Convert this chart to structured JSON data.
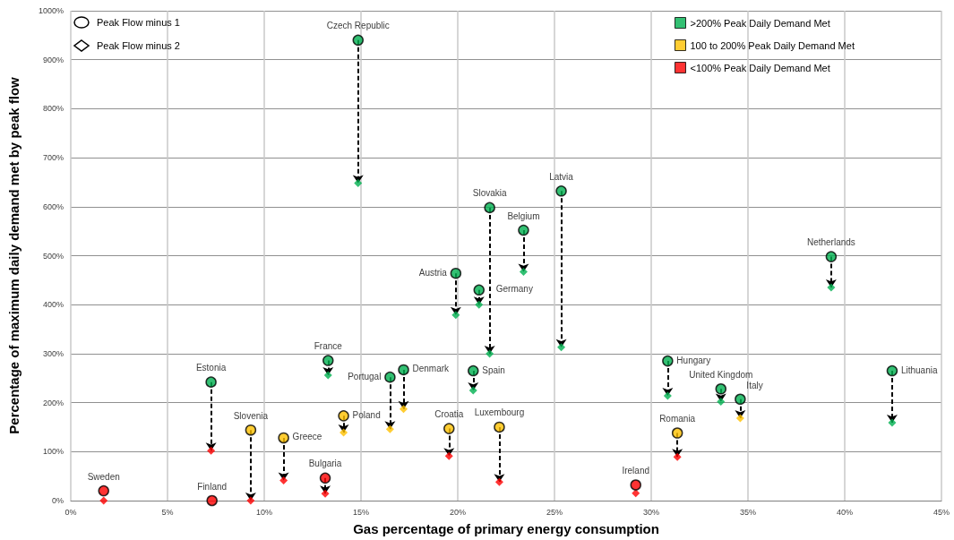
{
  "chart_data": {
    "type": "scatter",
    "xlabel": "Gas percentage of primary energy consumption",
    "ylabel": "Percentage of maximum daily demand met by peak flow",
    "xlim": [
      0,
      45
    ],
    "ylim": [
      0,
      1000
    ],
    "xticks": [
      {
        "value": 0,
        "label": "0%"
      },
      {
        "value": 5,
        "label": "5%"
      },
      {
        "value": 10,
        "label": "10%"
      },
      {
        "value": 15,
        "label": "15%"
      },
      {
        "value": 20,
        "label": "20%"
      },
      {
        "value": 25,
        "label": "25%"
      },
      {
        "value": 30,
        "label": "30%"
      },
      {
        "value": 35,
        "label": "35%"
      },
      {
        "value": 40,
        "label": "40%"
      },
      {
        "value": 45,
        "label": "45%"
      }
    ],
    "yticks": [
      {
        "value": 0,
        "label": "0%"
      },
      {
        "value": 100,
        "label": "100%"
      },
      {
        "value": 200,
        "label": "200%"
      },
      {
        "value": 300,
        "label": "300%"
      },
      {
        "value": 400,
        "label": "400%"
      },
      {
        "value": 500,
        "label": "500%"
      },
      {
        "value": 600,
        "label": "600%"
      },
      {
        "value": 700,
        "label": "700%"
      },
      {
        "value": 800,
        "label": "800%"
      },
      {
        "value": 900,
        "label": "900%"
      },
      {
        "value": 1000,
        "label": "1000%"
      }
    ],
    "grid": true,
    "legend": "top right",
    "x": [
      1.7,
      7.25,
      7.3,
      9.3,
      11.0,
      13.15,
      13.3,
      14.1,
      14.85,
      16.5,
      17.2,
      19.55,
      19.9,
      20.8,
      21.1,
      21.65,
      22.15,
      23.4,
      25.35,
      29.2,
      30.85,
      31.35,
      33.6,
      34.6,
      39.3,
      42.45
    ],
    "series": [
      {
        "name": ">200% Peak Daily Demand Met",
        "color": "#00b050",
        "marker": "circle",
        "values": [
          null,
          242,
          null,
          null,
          null,
          null,
          286,
          null,
          940,
          252,
          267,
          null,
          464,
          265,
          430,
          598,
          null,
          552,
          632,
          null,
          285,
          null,
          228,
          207,
          498,
          265
        ]
      },
      {
        "name": "100 to 200% Peak Daily Demand Met",
        "color": "#ffc000",
        "marker": "circle",
        "values": [
          null,
          null,
          null,
          144,
          128,
          null,
          null,
          173,
          null,
          null,
          null,
          147,
          null,
          null,
          null,
          null,
          150,
          null,
          null,
          null,
          null,
          138,
          null,
          null,
          null,
          null
        ]
      },
      {
        "name": "<100% Peak Daily Demand Met",
        "color": "#ff0000",
        "marker": "circle",
        "values": [
          20,
          null,
          0,
          null,
          null,
          46,
          null,
          null,
          null,
          null,
          null,
          null,
          null,
          null,
          null,
          null,
          null,
          null,
          null,
          32,
          null,
          null,
          null,
          null,
          null,
          null
        ]
      },
      {
        "color": "#00b050",
        "marker": "diamond",
        "values": [
          null,
          null,
          null,
          null,
          null,
          null,
          256,
          null,
          648,
          null,
          null,
          null,
          379,
          225,
          400,
          300,
          null,
          467,
          313,
          null,
          214,
          null,
          202,
          null,
          435,
          159
        ]
      },
      {
        "color": "#ffc000",
        "marker": "diamond",
        "values": [
          null,
          null,
          null,
          null,
          null,
          null,
          null,
          139,
          null,
          146,
          187,
          null,
          null,
          null,
          null,
          null,
          null,
          null,
          null,
          null,
          null,
          null,
          null,
          168,
          null,
          null
        ]
      },
      {
        "color": "#ff0000",
        "marker": "diamond",
        "values": [
          0,
          102,
          null,
          0,
          41,
          14,
          null,
          null,
          null,
          null,
          null,
          91,
          null,
          null,
          null,
          null,
          38,
          null,
          null,
          15,
          null,
          89,
          null,
          null,
          null,
          null
        ]
      }
    ],
    "annotations": [
      "Peak Flow minus 1",
      "Peak Flow minus 2",
      {
        "text": "Sweden",
        "x": 1.7,
        "y": 20
      },
      {
        "text": "Estonia",
        "x": 7.25,
        "y": 242
      },
      {
        "text": "Finland",
        "x": 7.3,
        "y": 0
      },
      {
        "text": "Slovenia",
        "x": 9.3,
        "y": 144
      },
      {
        "text": "Greece",
        "x": 11.0,
        "y": 128
      },
      {
        "text": "Bulgaria",
        "x": 13.15,
        "y": 46
      },
      {
        "text": "France",
        "x": 13.3,
        "y": 286
      },
      {
        "text": "Poland",
        "x": 14.1,
        "y": 173
      },
      {
        "text": "Czech Republic",
        "x": 14.85,
        "y": 940
      },
      {
        "text": "Portugal",
        "x": 16.5,
        "y": 252
      },
      {
        "text": "Denmark",
        "x": 17.2,
        "y": 267
      },
      {
        "text": "Croatia",
        "x": 19.55,
        "y": 147
      },
      {
        "text": "Austria",
        "x": 19.9,
        "y": 464
      },
      {
        "text": "Spain",
        "x": 20.8,
        "y": 265
      },
      {
        "text": "Germany",
        "x": 21.1,
        "y": 430
      },
      {
        "text": "Slovakia",
        "x": 21.65,
        "y": 598
      },
      {
        "text": "Luxembourg",
        "x": 22.15,
        "y": 150
      },
      {
        "text": "Belgium",
        "x": 23.4,
        "y": 552
      },
      {
        "text": "Latvia",
        "x": 25.35,
        "y": 632
      },
      {
        "text": "Ireland",
        "x": 29.2,
        "y": 32
      },
      {
        "text": "Hungary",
        "x": 30.85,
        "y": 285
      },
      {
        "text": "Romania",
        "x": 31.35,
        "y": 138
      },
      {
        "text": "United Kingdom",
        "x": 33.6,
        "y": 228
      },
      {
        "text": "Italy",
        "x": 34.6,
        "y": 207
      },
      {
        "text": "Netherlands",
        "x": 39.3,
        "y": 498
      },
      {
        "text": "Lithuania",
        "x": 42.45,
        "y": 265
      }
    ]
  }
}
